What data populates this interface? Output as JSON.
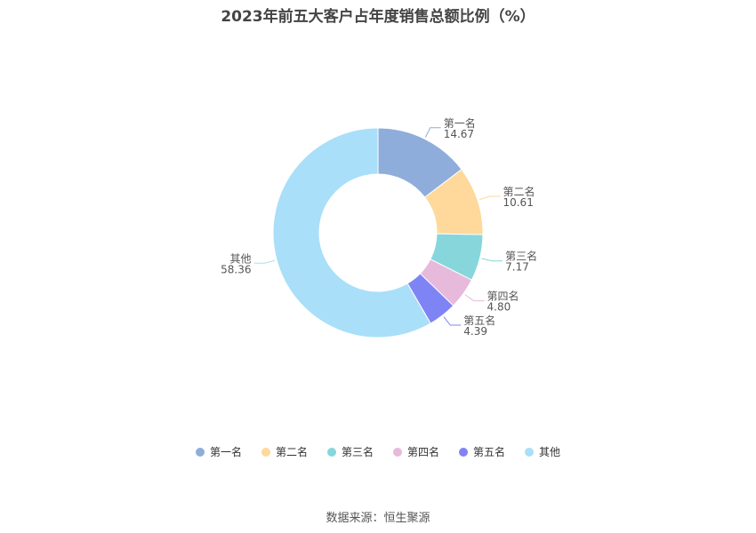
{
  "title": "2023年前五大客户占年度销售总额比例（%）",
  "source": "数据来源：恒生聚源",
  "chart_data": {
    "type": "pie",
    "donut": true,
    "legend_position": "bottom",
    "series": [
      {
        "name": "第一名",
        "value": 14.67,
        "label": "14.67",
        "color": "#8EADDB"
      },
      {
        "name": "第二名",
        "value": 10.61,
        "label": "10.61",
        "color": "#FED99B"
      },
      {
        "name": "第三名",
        "value": 7.17,
        "label": "7.17",
        "color": "#86D6DC"
      },
      {
        "name": "第四名",
        "value": 4.8,
        "label": "4.80",
        "color": "#E7B9DA"
      },
      {
        "name": "第五名",
        "value": 4.39,
        "label": "4.39",
        "color": "#7F84F5"
      },
      {
        "name": "其他",
        "value": 58.36,
        "label": "58.36",
        "color": "#A9DFF8"
      }
    ]
  }
}
